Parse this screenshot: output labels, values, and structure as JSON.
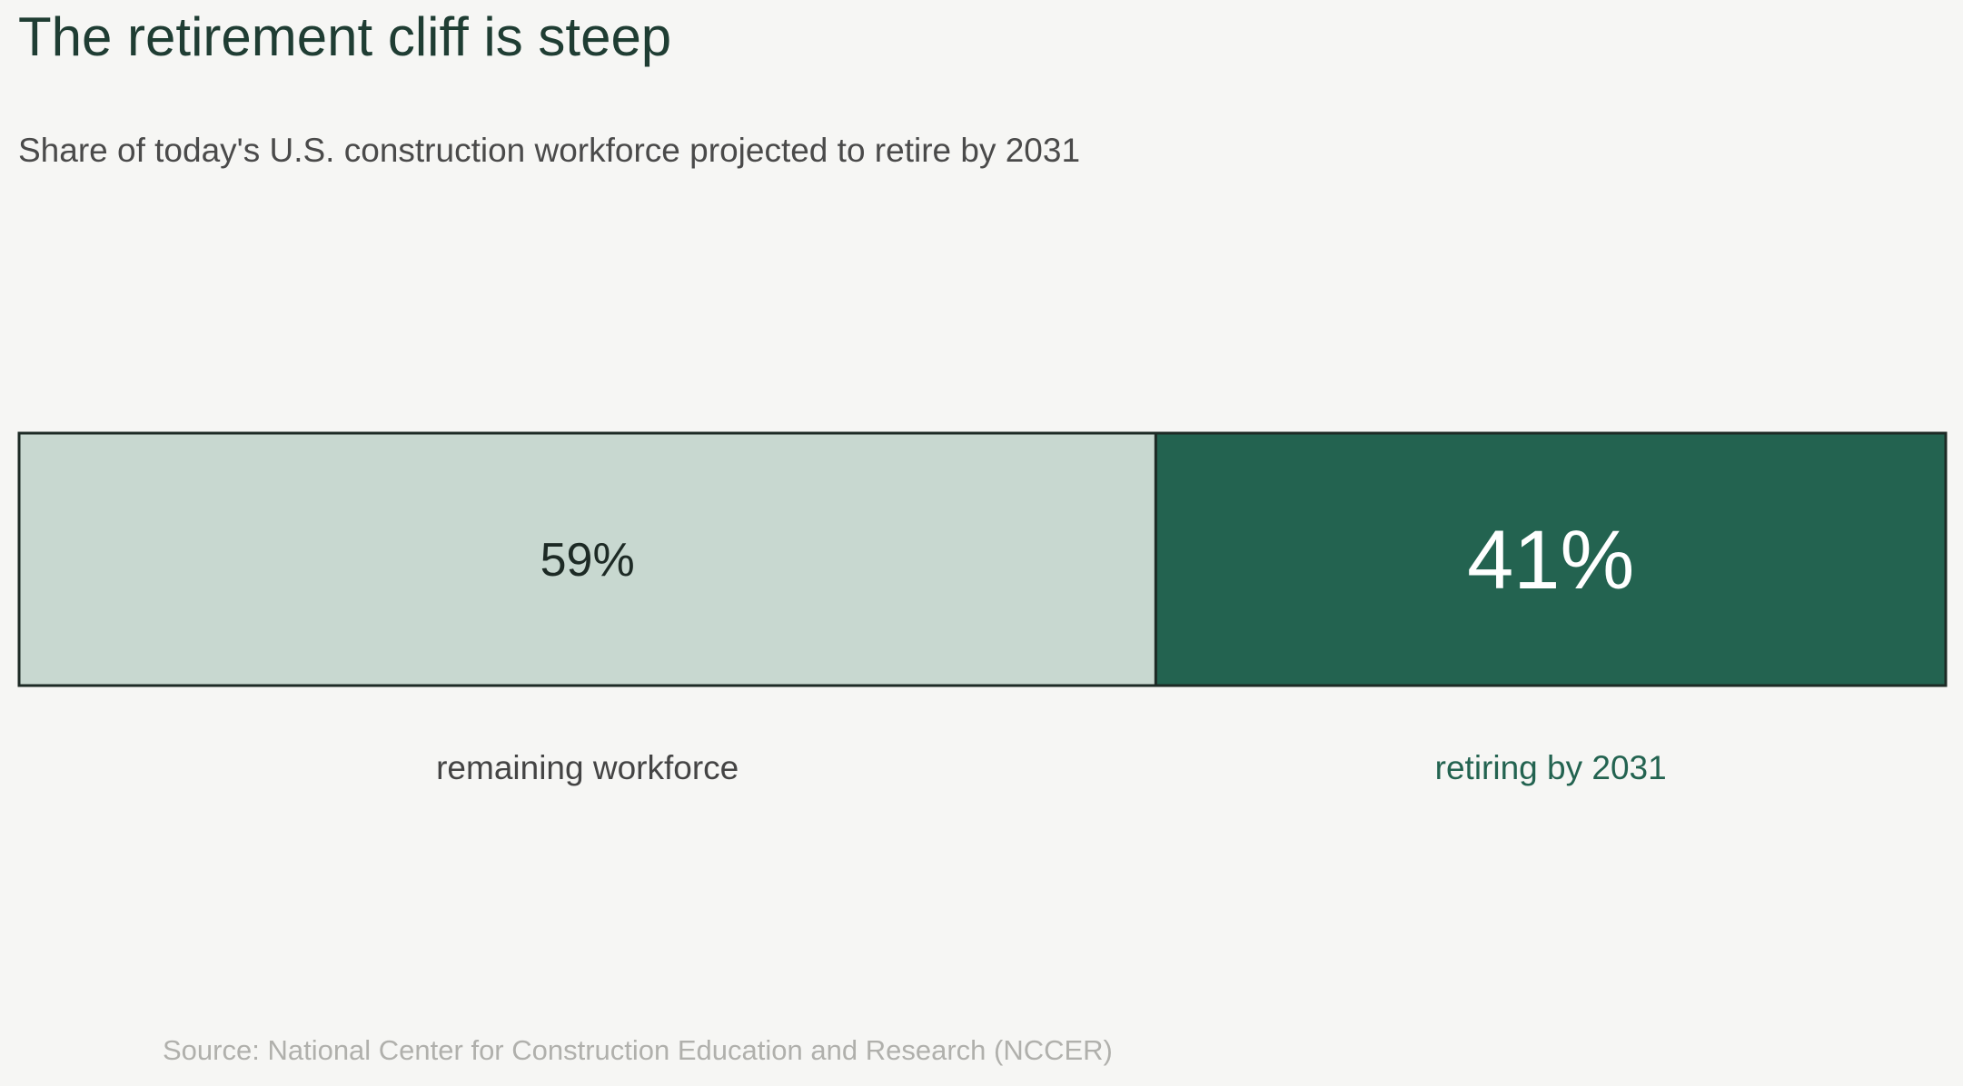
{
  "header": {
    "title": "The retirement cliff is steep",
    "subtitle": "Share of today's U.S. construction workforce projected to retire by 2031"
  },
  "chart_data": {
    "type": "bar",
    "orientation": "horizontal-stacked-100",
    "unit": "%",
    "segments": [
      {
        "name": "remaining workforce",
        "value": 59,
        "value_label": "59%",
        "category_label": "remaining workforce",
        "fill": "#c8d8d0",
        "text_color": "#1d2a25",
        "label_color": "#444444"
      },
      {
        "name": "retiring by 2031",
        "value": 41,
        "value_label": "41%",
        "category_label": "retiring by 2031",
        "fill": "#236350",
        "text_color": "#ffffff",
        "label_color": "#236350"
      }
    ],
    "total": 100,
    "border_color": "#1d2a25",
    "grid": false,
    "legend": "none"
  },
  "footer": {
    "source": "Source: National Center for Construction Education and Research (NCCER)"
  }
}
